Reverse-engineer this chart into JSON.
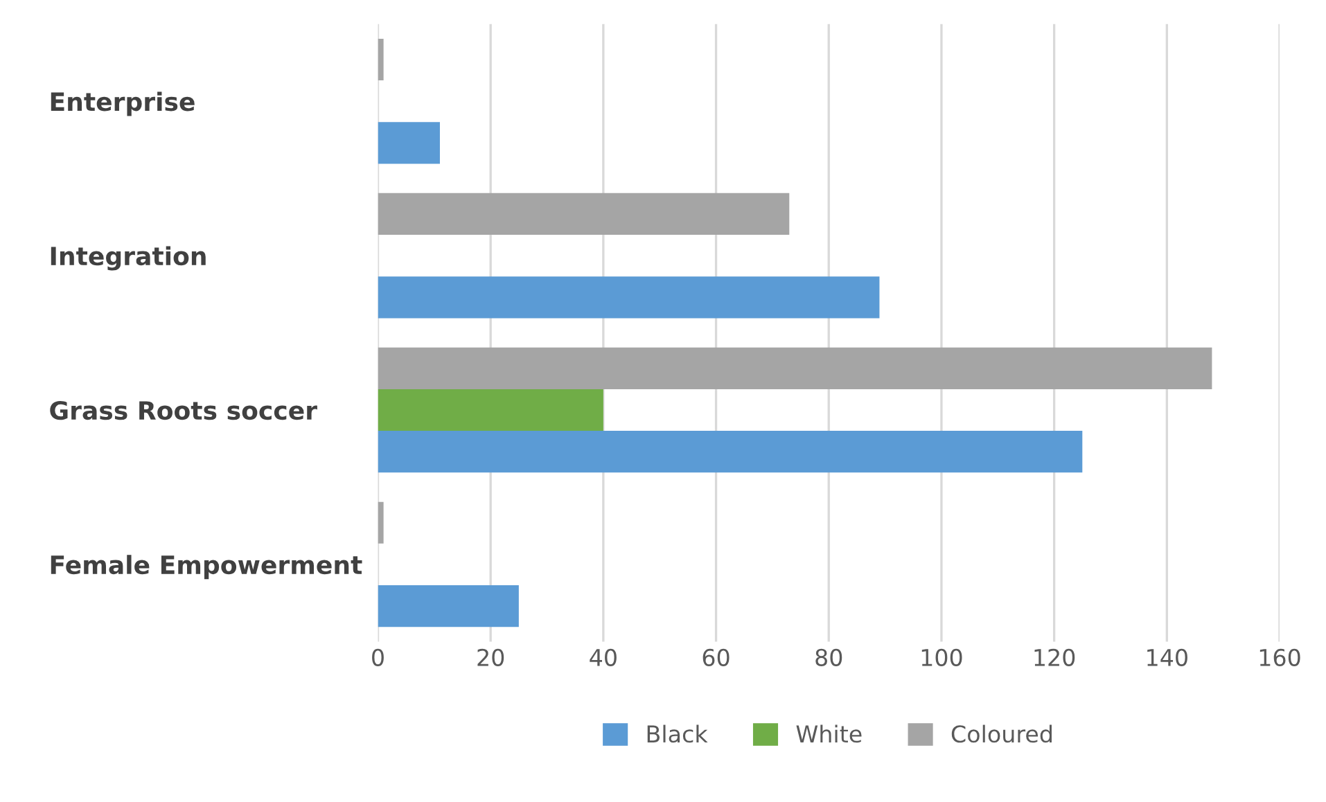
{
  "chart_data": {
    "type": "bar",
    "orientation": "horizontal",
    "categories": [
      "Enterprise",
      "Integration",
      "Grass Roots soccer",
      "Female Empowerment"
    ],
    "series": [
      {
        "name": "Black",
        "color": "#5b9bd5",
        "values": [
          11,
          89,
          125,
          25
        ]
      },
      {
        "name": "White",
        "color": "#70ad47",
        "values": [
          0,
          0,
          40,
          0
        ]
      },
      {
        "name": "Coloured",
        "color": "#a5a5a5",
        "values": [
          1,
          73,
          148,
          1
        ]
      }
    ],
    "xlim": [
      0,
      160
    ],
    "xticks": [
      0,
      20,
      40,
      60,
      80,
      100,
      120,
      140,
      160
    ],
    "grid": "x",
    "legend": "bottom"
  }
}
